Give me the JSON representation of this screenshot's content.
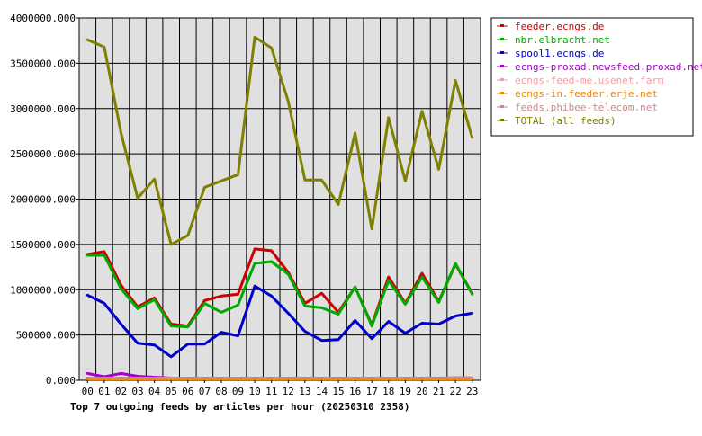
{
  "chart_data": {
    "type": "line",
    "title": "Top 7 outgoing feeds by articles per hour (20250310 2358)",
    "xlabel": "",
    "ylabel": "",
    "categories": [
      "00",
      "01",
      "02",
      "03",
      "04",
      "05",
      "06",
      "07",
      "08",
      "09",
      "10",
      "11",
      "12",
      "13",
      "14",
      "15",
      "16",
      "17",
      "18",
      "19",
      "20",
      "21",
      "22",
      "23"
    ],
    "ylim": [
      0,
      4000000
    ],
    "yticks": [
      0,
      500000,
      1000000,
      1500000,
      2000000,
      2500000,
      3000000,
      3500000,
      4000000
    ],
    "ytick_labels": [
      "0.000",
      "500000.000",
      "1000000.000",
      "1500000.000",
      "2000000.000",
      "2500000.000",
      "3000000.000",
      "3500000.000",
      "4000000.000"
    ],
    "grid": true,
    "legend_position": "right",
    "series": [
      {
        "name": "feeder.ecngs.de",
        "color": "#cc0000",
        "values": [
          1390000,
          1420000,
          1050000,
          810000,
          910000,
          620000,
          600000,
          880000,
          930000,
          950000,
          1450000,
          1430000,
          1190000,
          850000,
          960000,
          750000,
          1030000,
          610000,
          1140000,
          850000,
          1180000,
          870000,
          1280000,
          960000
        ]
      },
      {
        "name": "nbr.elbracht.net",
        "color": "#00aa00",
        "values": [
          1380000,
          1380000,
          1010000,
          790000,
          890000,
          600000,
          590000,
          850000,
          750000,
          830000,
          1290000,
          1310000,
          1170000,
          820000,
          800000,
          730000,
          1030000,
          600000,
          1100000,
          840000,
          1140000,
          860000,
          1290000,
          950000
        ]
      },
      {
        "name": "spool1.ecngs.de",
        "color": "#0000cc",
        "values": [
          940000,
          850000,
          620000,
          410000,
          390000,
          260000,
          400000,
          400000,
          530000,
          490000,
          1040000,
          930000,
          740000,
          540000,
          440000,
          450000,
          660000,
          460000,
          650000,
          520000,
          630000,
          620000,
          710000,
          740000
        ]
      },
      {
        "name": "ecngs-proxad.newsfeed.proxad.net",
        "color": "#aa00cc",
        "values": [
          75000,
          40000,
          75000,
          45000,
          35000,
          25000,
          25000,
          25000,
          25000,
          25000,
          25000,
          25000,
          25000,
          25000,
          25000,
          25000,
          25000,
          25000,
          25000,
          25000,
          25000,
          25000,
          25000,
          25000
        ]
      },
      {
        "name": "ecngs-feed-me.usenet.farm",
        "color": "#ff9999",
        "values": [
          20000,
          20000,
          20000,
          20000,
          20000,
          20000,
          20000,
          20000,
          20000,
          20000,
          20000,
          20000,
          20000,
          20000,
          20000,
          20000,
          20000,
          20000,
          20000,
          20000,
          20000,
          20000,
          20000,
          20000
        ]
      },
      {
        "name": "ecngs-in.feeder.erje.net",
        "color": "#ee8800",
        "values": [
          15000,
          15000,
          15000,
          15000,
          15000,
          15000,
          15000,
          15000,
          15000,
          15000,
          15000,
          15000,
          15000,
          15000,
          15000,
          15000,
          15000,
          15000,
          15000,
          15000,
          15000,
          15000,
          15000,
          15000
        ]
      },
      {
        "name": "feeds.phibee-telecom.net",
        "color": "#cc8888",
        "values": [
          25000,
          25000,
          25000,
          25000,
          25000,
          25000,
          25000,
          25000,
          25000,
          25000,
          25000,
          25000,
          25000,
          25000,
          25000,
          25000,
          25000,
          25000,
          25000,
          25000,
          25000,
          25000,
          30000,
          30000
        ]
      },
      {
        "name": "TOTAL (all feeds)",
        "color": "#808000",
        "values": [
          3760000,
          3680000,
          2730000,
          2010000,
          2220000,
          1500000,
          1600000,
          2130000,
          2200000,
          2270000,
          3790000,
          3670000,
          3080000,
          2210000,
          2210000,
          1940000,
          2730000,
          1670000,
          2900000,
          2200000,
          2970000,
          2330000,
          3310000,
          2680000
        ]
      }
    ]
  }
}
